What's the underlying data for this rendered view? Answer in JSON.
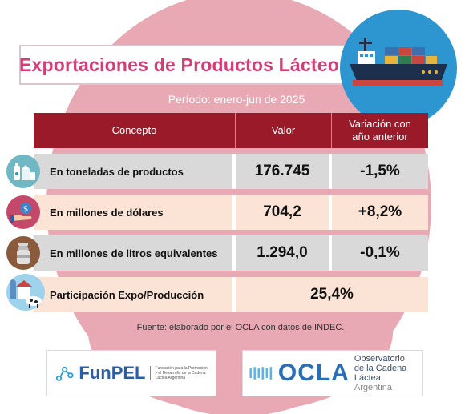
{
  "title": "Exportaciones de Productos Lácteos",
  "period": "Período: enero-jun de 2025",
  "table": {
    "headers": {
      "concept": "Concepto",
      "value": "Valor",
      "variation_line1": "Variación con",
      "variation_line2": "año anterior"
    },
    "rows": [
      {
        "concept": "En toneladas de productos",
        "value": "176.745",
        "variation": "-1,5%",
        "icon": "dairy-products-icon"
      },
      {
        "concept": "En millones de dólares",
        "value": "704,2",
        "variation": "+8,2%",
        "icon": "money-hand-icon"
      },
      {
        "concept": "En millones de litros equivalentes",
        "value": "1.294,0",
        "variation": "-0,1%",
        "icon": "milk-can-icon"
      },
      {
        "concept": "Participación Expo/Producción",
        "value": "25,4%",
        "icon": "cow-farm-icon"
      }
    ]
  },
  "source": "Fuente: elaborado por el OCLA con datos de INDEC.",
  "logos": {
    "funpel": {
      "name": "FunPEL",
      "subtitle_line1": "Fundación para la Promoción",
      "subtitle_line2": "y el Desarrollo de la Cadena",
      "subtitle_line3": "Láctea Argentina"
    },
    "ocla": {
      "name": "OCLA",
      "subtitle_line1": "Observatorio",
      "subtitle_line2": "de la Cadena Láctea",
      "subtitle_line3": "Argentina"
    }
  },
  "colors": {
    "title": "#d23e76",
    "header": "#9b1a2a",
    "background_circle": "#e8a9b4",
    "row_gray": "#d9d9d9",
    "row_peach": "#fbe3d6",
    "ship_badge": "#2d95cf"
  }
}
